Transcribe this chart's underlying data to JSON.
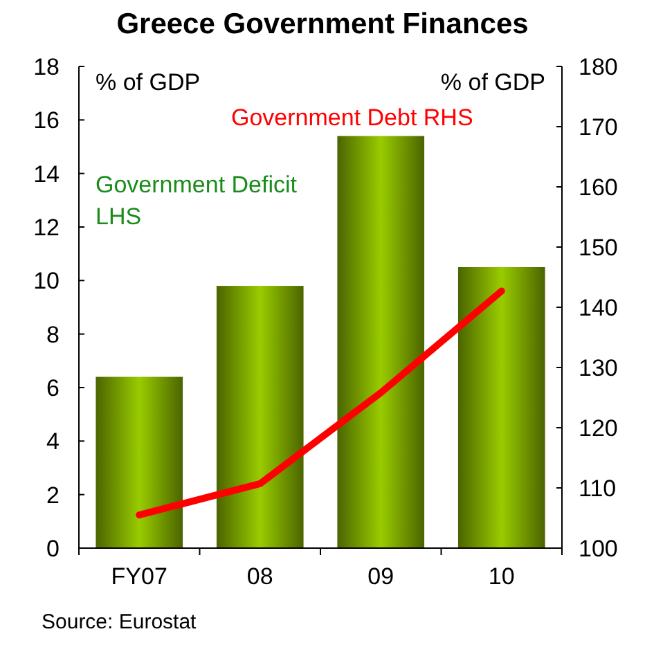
{
  "chart_data": {
    "type": "bar",
    "title": "Greece Government Finances",
    "categories": [
      "FY07",
      "08",
      "09",
      "10"
    ],
    "series": [
      {
        "name": "Government Deficit LHS",
        "color": "#99cc00",
        "values": [
          6.4,
          9.8,
          15.4,
          10.5
        ]
      },
      {
        "name": "Government Debt RHS",
        "color": "#ff0000",
        "type": "line",
        "axis": "y2",
        "values": [
          105.5,
          110.7,
          125.8,
          142.7
        ]
      }
    ],
    "ylabel": "% of GDP",
    "y2label": "% of GDP",
    "ylim": [
      0,
      18
    ],
    "yticks": [
      0,
      2,
      4,
      6,
      8,
      10,
      12,
      14,
      16,
      18
    ],
    "y2lim": [
      100,
      180
    ],
    "y2ticks": [
      100,
      110,
      120,
      130,
      140,
      150,
      160,
      170,
      180
    ],
    "annotations": [
      "Source: Eurostat"
    ],
    "grid": false
  }
}
